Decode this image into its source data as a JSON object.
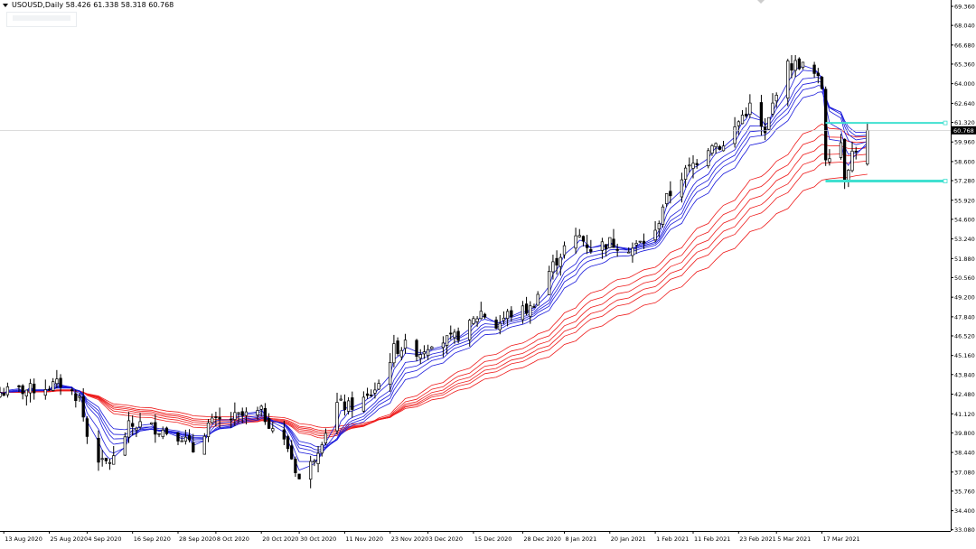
{
  "chart_header": {
    "symbol_line": "USOUSD,Daily  58.426 61.338 58.318 60.768"
  },
  "colors": {
    "background": "#ffffff",
    "bull_candle_body": "#ffffff",
    "bear_candle_body": "#000000",
    "candle_outline": "#000000",
    "short_ema_group": "#1a1adb",
    "long_ema_group": "#ee1b1b",
    "horizontal_line": "#40e0d0",
    "bid_line": "#c8c8c8"
  },
  "chart_data": {
    "type": "candlestick",
    "title": "USOUSD,Daily",
    "ohlc_header": {
      "open": 58.426,
      "high": 61.338,
      "low": 58.318,
      "close": 60.768
    },
    "price_axis": {
      "position": "right",
      "range": [
        33.0,
        69.8
      ],
      "ticks": [
        "69.360",
        "68.040",
        "66.680",
        "65.360",
        "64.000",
        "62.640",
        "61.320",
        "59.960",
        "58.600",
        "57.280",
        "55.920",
        "54.600",
        "53.240",
        "51.880",
        "50.560",
        "49.200",
        "47.840",
        "46.520",
        "45.160",
        "43.840",
        "42.480",
        "41.120",
        "39.800",
        "38.440",
        "37.080",
        "35.760",
        "34.400",
        "33.080"
      ],
      "current_price_label": "60.768"
    },
    "time_axis": {
      "range": [
        "2020-08-12",
        "2021-04-20"
      ],
      "tick_labels": [
        "13 Aug 2020",
        "25 Aug 2020",
        "4 Sep 2020",
        "16 Sep 2020",
        "28 Sep 2020",
        "8 Oct 2020",
        "20 Oct 2020",
        "30 Oct 2020",
        "11 Nov 2020",
        "23 Nov 2020",
        "3 Dec 2020",
        "15 Dec 2020",
        "28 Dec 2020",
        "8 Jan 2021",
        "20 Jan 2021",
        "1 Feb 2021",
        "11 Feb 2021",
        "23 Feb 2021",
        "5 Mar 2021",
        "17 Mar 2021"
      ],
      "tick_dates": [
        "2020-08-13",
        "2020-08-25",
        "2020-09-04",
        "2020-09-16",
        "2020-09-28",
        "2020-10-08",
        "2020-10-20",
        "2020-10-30",
        "2020-11-11",
        "2020-11-23",
        "2020-12-03",
        "2020-12-15",
        "2020-12-28",
        "2021-01-08",
        "2021-01-20",
        "2021-02-01",
        "2021-02-11",
        "2021-02-23",
        "2021-03-05",
        "2021-03-17"
      ]
    },
    "close_path": [
      [
        "2020-08-12",
        42.6
      ],
      [
        "2020-08-20",
        42.8
      ],
      [
        "2020-08-28",
        43.2
      ],
      [
        "2020-09-02",
        42.2
      ],
      [
        "2020-09-04",
        39.6
      ],
      [
        "2020-09-08",
        37.6
      ],
      [
        "2020-09-11",
        38.0
      ],
      [
        "2020-09-15",
        40.2
      ],
      [
        "2020-09-18",
        40.4
      ],
      [
        "2020-09-24",
        40.0
      ],
      [
        "2020-09-29",
        39.6
      ],
      [
        "2020-10-02",
        38.6
      ],
      [
        "2020-10-06",
        40.4
      ],
      [
        "2020-10-09",
        40.6
      ],
      [
        "2020-10-14",
        40.9
      ],
      [
        "2020-10-20",
        41.2
      ],
      [
        "2020-10-23",
        40.2
      ],
      [
        "2020-10-27",
        38.8
      ],
      [
        "2020-10-30",
        36.6
      ],
      [
        "2020-11-02",
        37.6
      ],
      [
        "2020-11-05",
        39.4
      ],
      [
        "2020-11-09",
        41.8
      ],
      [
        "2020-11-12",
        41.6
      ],
      [
        "2020-11-17",
        42.2
      ],
      [
        "2020-11-20",
        43.2
      ],
      [
        "2020-11-24",
        45.6
      ],
      [
        "2020-11-27",
        45.8
      ],
      [
        "2020-12-01",
        45.4
      ],
      [
        "2020-12-04",
        46.2
      ],
      [
        "2020-12-09",
        46.2
      ],
      [
        "2020-12-14",
        47.2
      ],
      [
        "2020-12-17",
        48.2
      ],
      [
        "2020-12-21",
        47.2
      ],
      [
        "2020-12-24",
        48.0
      ],
      [
        "2020-12-30",
        48.4
      ],
      [
        "2021-01-04",
        51.0
      ],
      [
        "2021-01-08",
        52.6
      ],
      [
        "2021-01-12",
        53.4
      ],
      [
        "2021-01-15",
        52.6
      ],
      [
        "2021-01-20",
        53.0
      ],
      [
        "2021-01-26",
        52.6
      ],
      [
        "2021-02-01",
        53.6
      ],
      [
        "2021-02-03",
        55.6
      ],
      [
        "2021-02-08",
        57.6
      ],
      [
        "2021-02-11",
        58.4
      ],
      [
        "2021-02-16",
        60.0
      ],
      [
        "2021-02-19",
        59.6
      ],
      [
        "2021-02-24",
        61.8
      ],
      [
        "2021-02-26",
        62.4
      ],
      [
        "2021-03-02",
        60.4
      ],
      [
        "2021-03-05",
        63.6
      ],
      [
        "2021-03-08",
        65.2
      ],
      [
        "2021-03-11",
        65.4
      ],
      [
        "2021-03-15",
        64.6
      ],
      [
        "2021-03-17",
        63.8
      ],
      [
        "2021-03-18",
        59.0
      ],
      [
        "2021-03-22",
        60.0
      ],
      [
        "2021-03-23",
        57.6
      ],
      [
        "2021-03-25",
        59.2
      ],
      [
        "2021-03-29",
        60.768
      ]
    ],
    "horizontal_levels": [
      61.28,
      57.25
    ]
  }
}
